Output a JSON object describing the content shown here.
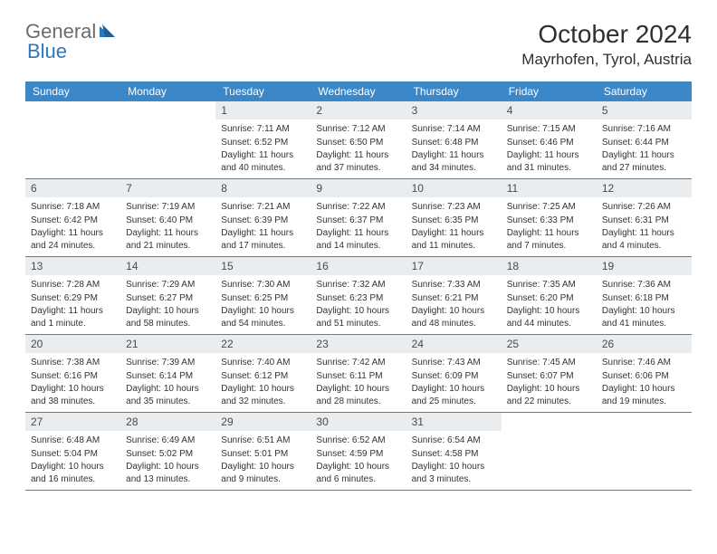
{
  "logo": {
    "text1": "General",
    "text2": "Blue"
  },
  "title": "October 2024",
  "location": "Mayrhofen, Tyrol, Austria",
  "colors": {
    "header_bg": "#3b87c8",
    "header_text": "#ffffff",
    "daynum_bg": "#e9edf0",
    "rule": "#3b87c8",
    "logo_gray": "#6b6b6b",
    "logo_blue": "#2a78bf"
  },
  "day_headers": [
    "Sunday",
    "Monday",
    "Tuesday",
    "Wednesday",
    "Thursday",
    "Friday",
    "Saturday"
  ],
  "weeks": [
    [
      null,
      null,
      {
        "n": "1",
        "sr": "Sunrise: 7:11 AM",
        "ss": "Sunset: 6:52 PM",
        "dl": "Daylight: 11 hours and 40 minutes."
      },
      {
        "n": "2",
        "sr": "Sunrise: 7:12 AM",
        "ss": "Sunset: 6:50 PM",
        "dl": "Daylight: 11 hours and 37 minutes."
      },
      {
        "n": "3",
        "sr": "Sunrise: 7:14 AM",
        "ss": "Sunset: 6:48 PM",
        "dl": "Daylight: 11 hours and 34 minutes."
      },
      {
        "n": "4",
        "sr": "Sunrise: 7:15 AM",
        "ss": "Sunset: 6:46 PM",
        "dl": "Daylight: 11 hours and 31 minutes."
      },
      {
        "n": "5",
        "sr": "Sunrise: 7:16 AM",
        "ss": "Sunset: 6:44 PM",
        "dl": "Daylight: 11 hours and 27 minutes."
      }
    ],
    [
      {
        "n": "6",
        "sr": "Sunrise: 7:18 AM",
        "ss": "Sunset: 6:42 PM",
        "dl": "Daylight: 11 hours and 24 minutes."
      },
      {
        "n": "7",
        "sr": "Sunrise: 7:19 AM",
        "ss": "Sunset: 6:40 PM",
        "dl": "Daylight: 11 hours and 21 minutes."
      },
      {
        "n": "8",
        "sr": "Sunrise: 7:21 AM",
        "ss": "Sunset: 6:39 PM",
        "dl": "Daylight: 11 hours and 17 minutes."
      },
      {
        "n": "9",
        "sr": "Sunrise: 7:22 AM",
        "ss": "Sunset: 6:37 PM",
        "dl": "Daylight: 11 hours and 14 minutes."
      },
      {
        "n": "10",
        "sr": "Sunrise: 7:23 AM",
        "ss": "Sunset: 6:35 PM",
        "dl": "Daylight: 11 hours and 11 minutes."
      },
      {
        "n": "11",
        "sr": "Sunrise: 7:25 AM",
        "ss": "Sunset: 6:33 PM",
        "dl": "Daylight: 11 hours and 7 minutes."
      },
      {
        "n": "12",
        "sr": "Sunrise: 7:26 AM",
        "ss": "Sunset: 6:31 PM",
        "dl": "Daylight: 11 hours and 4 minutes."
      }
    ],
    [
      {
        "n": "13",
        "sr": "Sunrise: 7:28 AM",
        "ss": "Sunset: 6:29 PM",
        "dl": "Daylight: 11 hours and 1 minute."
      },
      {
        "n": "14",
        "sr": "Sunrise: 7:29 AM",
        "ss": "Sunset: 6:27 PM",
        "dl": "Daylight: 10 hours and 58 minutes."
      },
      {
        "n": "15",
        "sr": "Sunrise: 7:30 AM",
        "ss": "Sunset: 6:25 PM",
        "dl": "Daylight: 10 hours and 54 minutes."
      },
      {
        "n": "16",
        "sr": "Sunrise: 7:32 AM",
        "ss": "Sunset: 6:23 PM",
        "dl": "Daylight: 10 hours and 51 minutes."
      },
      {
        "n": "17",
        "sr": "Sunrise: 7:33 AM",
        "ss": "Sunset: 6:21 PM",
        "dl": "Daylight: 10 hours and 48 minutes."
      },
      {
        "n": "18",
        "sr": "Sunrise: 7:35 AM",
        "ss": "Sunset: 6:20 PM",
        "dl": "Daylight: 10 hours and 44 minutes."
      },
      {
        "n": "19",
        "sr": "Sunrise: 7:36 AM",
        "ss": "Sunset: 6:18 PM",
        "dl": "Daylight: 10 hours and 41 minutes."
      }
    ],
    [
      {
        "n": "20",
        "sr": "Sunrise: 7:38 AM",
        "ss": "Sunset: 6:16 PM",
        "dl": "Daylight: 10 hours and 38 minutes."
      },
      {
        "n": "21",
        "sr": "Sunrise: 7:39 AM",
        "ss": "Sunset: 6:14 PM",
        "dl": "Daylight: 10 hours and 35 minutes."
      },
      {
        "n": "22",
        "sr": "Sunrise: 7:40 AM",
        "ss": "Sunset: 6:12 PM",
        "dl": "Daylight: 10 hours and 32 minutes."
      },
      {
        "n": "23",
        "sr": "Sunrise: 7:42 AM",
        "ss": "Sunset: 6:11 PM",
        "dl": "Daylight: 10 hours and 28 minutes."
      },
      {
        "n": "24",
        "sr": "Sunrise: 7:43 AM",
        "ss": "Sunset: 6:09 PM",
        "dl": "Daylight: 10 hours and 25 minutes."
      },
      {
        "n": "25",
        "sr": "Sunrise: 7:45 AM",
        "ss": "Sunset: 6:07 PM",
        "dl": "Daylight: 10 hours and 22 minutes."
      },
      {
        "n": "26",
        "sr": "Sunrise: 7:46 AM",
        "ss": "Sunset: 6:06 PM",
        "dl": "Daylight: 10 hours and 19 minutes."
      }
    ],
    [
      {
        "n": "27",
        "sr": "Sunrise: 6:48 AM",
        "ss": "Sunset: 5:04 PM",
        "dl": "Daylight: 10 hours and 16 minutes."
      },
      {
        "n": "28",
        "sr": "Sunrise: 6:49 AM",
        "ss": "Sunset: 5:02 PM",
        "dl": "Daylight: 10 hours and 13 minutes."
      },
      {
        "n": "29",
        "sr": "Sunrise: 6:51 AM",
        "ss": "Sunset: 5:01 PM",
        "dl": "Daylight: 10 hours and 9 minutes."
      },
      {
        "n": "30",
        "sr": "Sunrise: 6:52 AM",
        "ss": "Sunset: 4:59 PM",
        "dl": "Daylight: 10 hours and 6 minutes."
      },
      {
        "n": "31",
        "sr": "Sunrise: 6:54 AM",
        "ss": "Sunset: 4:58 PM",
        "dl": "Daylight: 10 hours and 3 minutes."
      },
      null,
      null
    ]
  ]
}
